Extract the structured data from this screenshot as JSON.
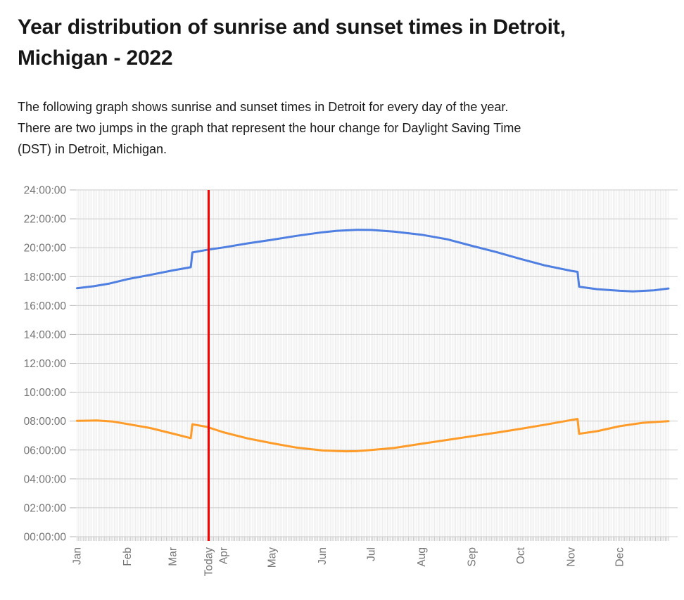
{
  "page": {
    "title_lines": [
      "Year distribution of sunrise and sunset times in Detroit,",
      "Michigan - 2022"
    ],
    "description_lines": [
      "The following graph shows sunrise and sunset times in Detroit for every day of the year.",
      "There are two jumps in the graph that represent the hour change for Daylight Saving Time",
      "(DST) in Detroit, Michigan."
    ]
  },
  "chart_data": {
    "type": "line",
    "title": "Year distribution of sunrise and sunset times in Detroit, Michigan - 2022",
    "xlabel": "",
    "ylabel": "",
    "x_axis": {
      "unit": "day_of_year",
      "range_days": [
        0,
        364
      ],
      "months": [
        {
          "label": "Jan",
          "day": 0
        },
        {
          "label": "Feb",
          "day": 31
        },
        {
          "label": "Mar",
          "day": 59
        },
        {
          "label": "Apr",
          "day": 90
        },
        {
          "label": "May",
          "day": 120
        },
        {
          "label": "Jun",
          "day": 151
        },
        {
          "label": "Jul",
          "day": 181
        },
        {
          "label": "Aug",
          "day": 212
        },
        {
          "label": "Sep",
          "day": 243
        },
        {
          "label": "Oct",
          "day": 273
        },
        {
          "label": "Nov",
          "day": 304
        },
        {
          "label": "Dec",
          "day": 334
        }
      ],
      "today": {
        "label": "Today",
        "day": 81
      }
    },
    "y_axis": {
      "min_hours": 0,
      "max_hours": 24,
      "step_hours": 2,
      "ticks": [
        "24:00:00",
        "22:00:00",
        "20:00:00",
        "18:00:00",
        "16:00:00",
        "14:00:00",
        "12:00:00",
        "10:00:00",
        "08:00:00",
        "06:00:00",
        "04:00:00",
        "02:00:00",
        "00:00:00"
      ],
      "grid": true
    },
    "legend_position": "none",
    "colors": {
      "sunset": "#4e7fe1",
      "sunrise": "#ff9b28",
      "today_line": "#fb0000",
      "grid": "#cccccc",
      "day_grid": "#ececec",
      "tick_mark": "#c9c9c9",
      "axis_text": "#757575"
    },
    "series": [
      {
        "name": "sunset",
        "color_key": "sunset",
        "points_day_hour": [
          [
            0,
            17.2
          ],
          [
            10,
            17.33
          ],
          [
            20,
            17.52
          ],
          [
            31,
            17.82
          ],
          [
            45,
            18.12
          ],
          [
            59,
            18.43
          ],
          [
            70,
            18.65
          ],
          [
            71,
            19.67
          ],
          [
            80,
            19.85
          ],
          [
            90,
            20.02
          ],
          [
            105,
            20.3
          ],
          [
            120,
            20.55
          ],
          [
            135,
            20.82
          ],
          [
            151,
            21.07
          ],
          [
            160,
            21.17
          ],
          [
            172,
            21.24
          ],
          [
            181,
            21.23
          ],
          [
            195,
            21.12
          ],
          [
            212,
            20.9
          ],
          [
            228,
            20.58
          ],
          [
            243,
            20.13
          ],
          [
            258,
            19.7
          ],
          [
            273,
            19.22
          ],
          [
            288,
            18.77
          ],
          [
            304,
            18.4
          ],
          [
            308,
            18.33
          ],
          [
            309,
            17.3
          ],
          [
            320,
            17.13
          ],
          [
            334,
            17.02
          ],
          [
            342,
            16.98
          ],
          [
            355,
            17.05
          ],
          [
            364,
            17.18
          ]
        ]
      },
      {
        "name": "sunrise",
        "color_key": "sunrise",
        "points_day_hour": [
          [
            0,
            8.02
          ],
          [
            12,
            8.04
          ],
          [
            22,
            7.97
          ],
          [
            31,
            7.8
          ],
          [
            45,
            7.52
          ],
          [
            59,
            7.13
          ],
          [
            70,
            6.82
          ],
          [
            71,
            7.78
          ],
          [
            80,
            7.6
          ],
          [
            90,
            7.23
          ],
          [
            105,
            6.8
          ],
          [
            120,
            6.47
          ],
          [
            135,
            6.17
          ],
          [
            151,
            5.97
          ],
          [
            165,
            5.91
          ],
          [
            172,
            5.92
          ],
          [
            181,
            6.0
          ],
          [
            195,
            6.14
          ],
          [
            212,
            6.43
          ],
          [
            228,
            6.7
          ],
          [
            243,
            6.95
          ],
          [
            258,
            7.2
          ],
          [
            273,
            7.47
          ],
          [
            288,
            7.75
          ],
          [
            304,
            8.07
          ],
          [
            308,
            8.15
          ],
          [
            309,
            7.12
          ],
          [
            320,
            7.3
          ],
          [
            334,
            7.65
          ],
          [
            348,
            7.88
          ],
          [
            357,
            7.95
          ],
          [
            364,
            8.0
          ]
        ]
      }
    ],
    "annotations": {
      "dst_jumps_days": [
        71,
        309
      ]
    }
  }
}
